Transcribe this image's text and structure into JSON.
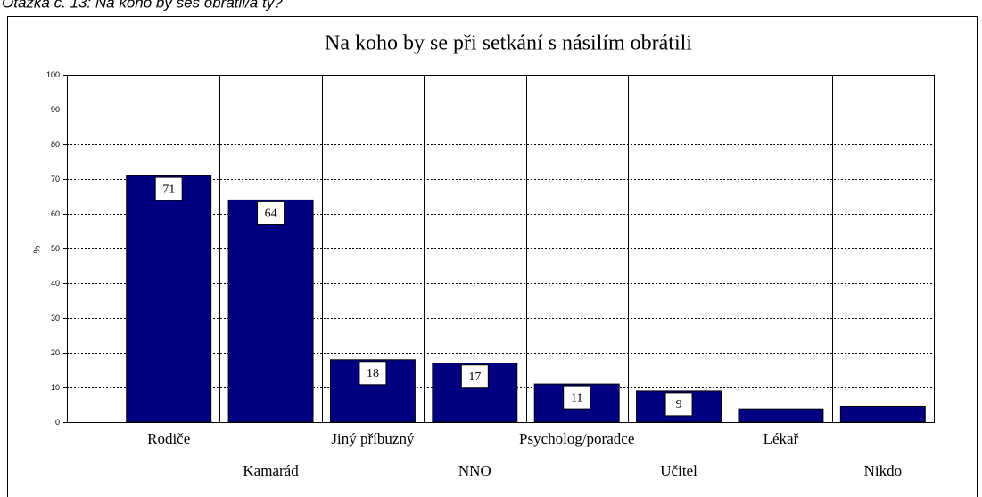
{
  "header": "Otázka č. 13: Na koho by ses obrátil/a ty?",
  "chart_data": {
    "type": "bar",
    "title": "Na koho by se při setkání s násilím obrátili",
    "ylabel": "%",
    "categories": [
      "Rodiče",
      "Kamarád",
      "Jiný příbuzný",
      "NNO",
      "Psycholog/poradce",
      "Učitel",
      "Lékař",
      "Nikdo"
    ],
    "values": [
      71,
      64,
      18,
      17,
      11,
      9,
      3.8,
      4.5
    ],
    "value_labels": [
      "71",
      "64",
      "18",
      "17",
      "11",
      "9",
      null,
      null
    ],
    "color": "#000080",
    "ylim": [
      0,
      100
    ],
    "yticks": [
      0,
      10,
      20,
      30,
      40,
      50,
      60,
      70,
      80,
      90,
      100
    ],
    "grid": true
  }
}
